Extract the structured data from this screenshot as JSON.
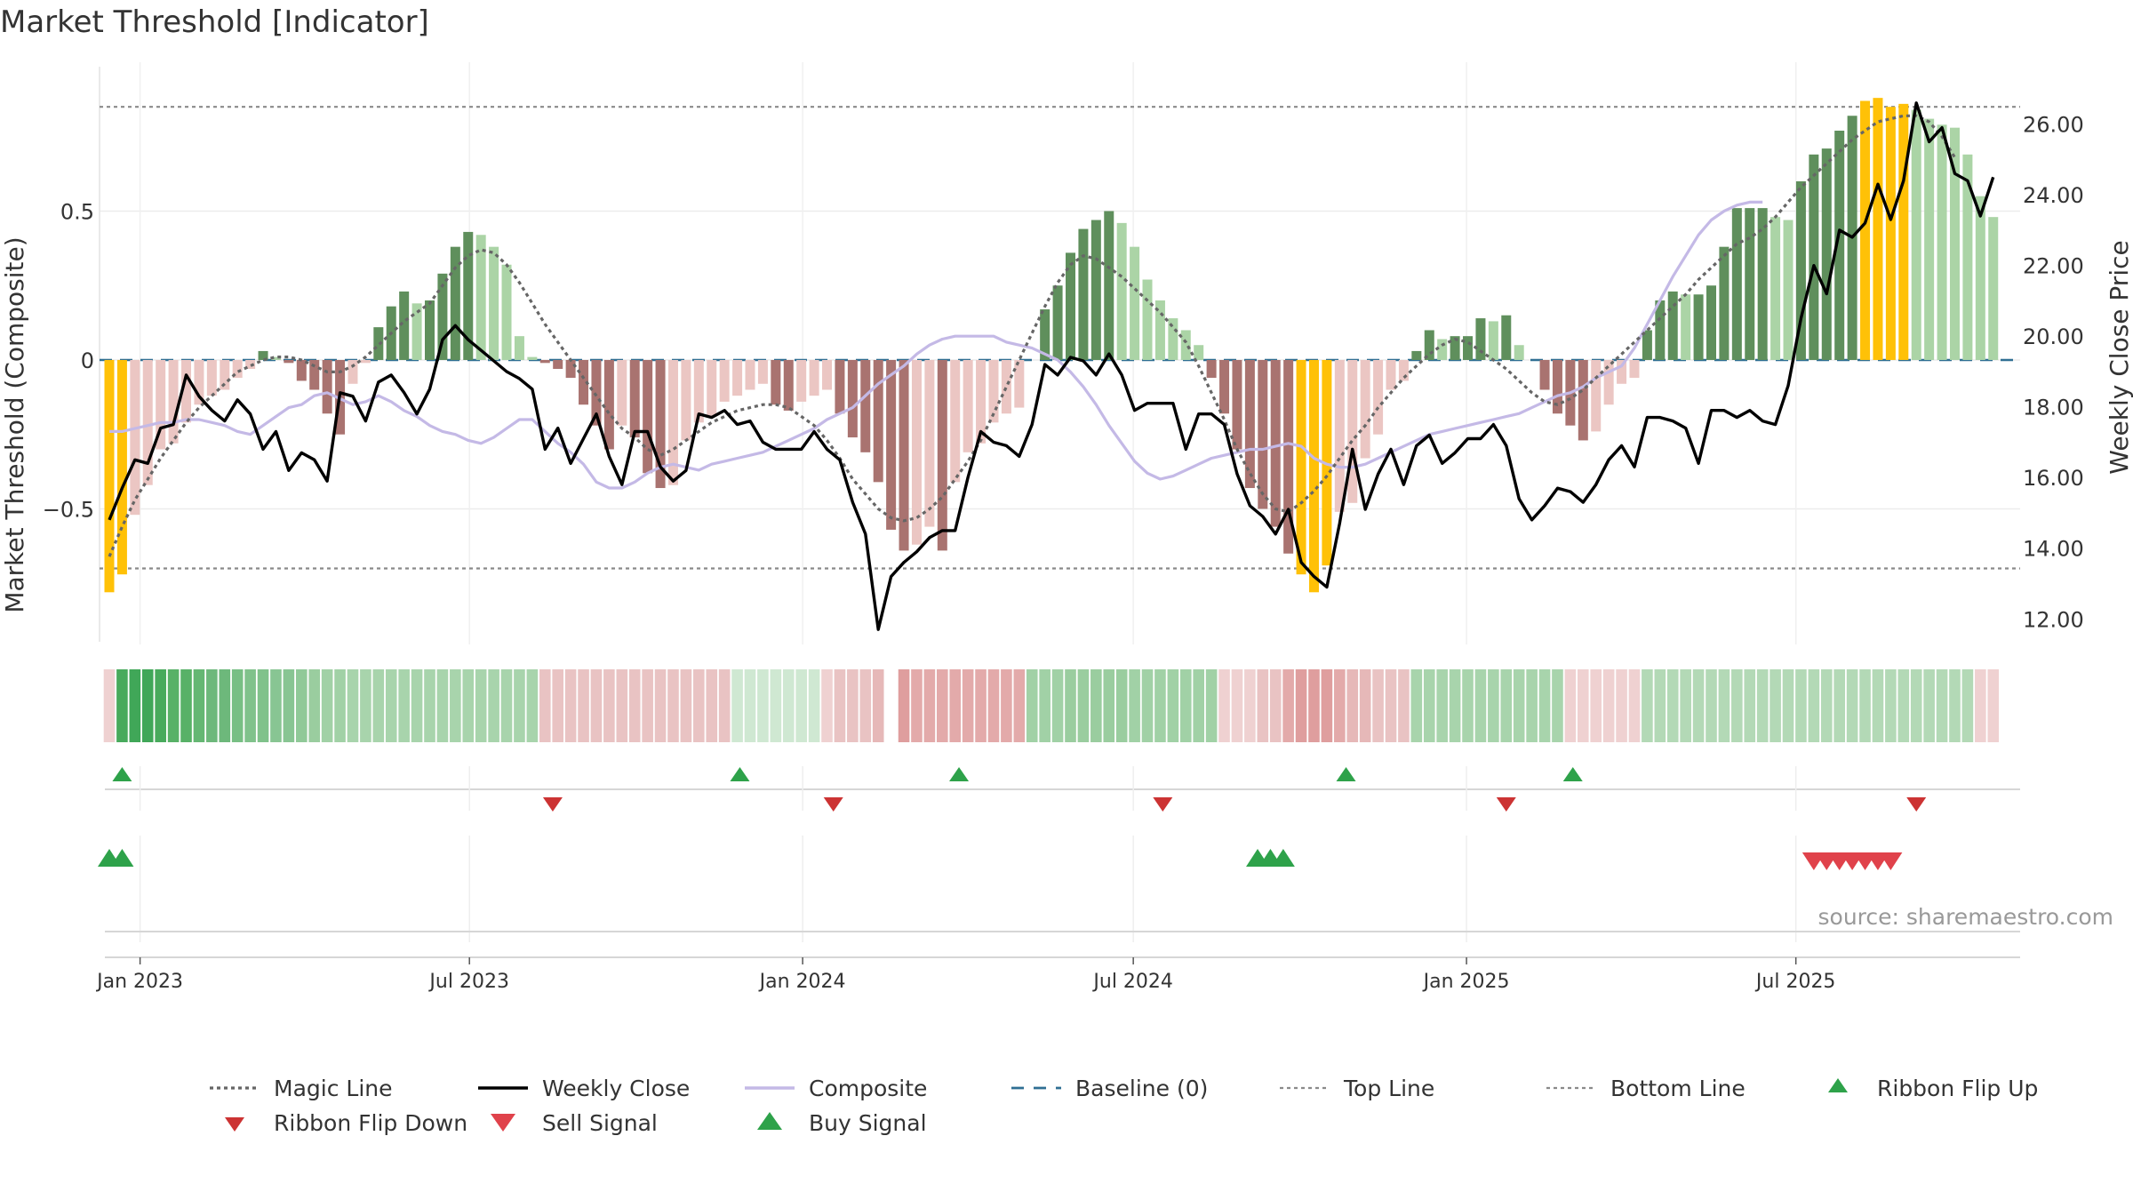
{
  "chart_data": {
    "type": "bar",
    "title": "Market Threshold [Indicator]",
    "source": "source: sharemaestro.com",
    "ylabel_left": "Market Threshold (Composite)",
    "ylabel_right": "Weekly Close Price",
    "ylim_left": [
      -1.0,
      0.97
    ],
    "ylim_right": [
      10.9,
      27.5
    ],
    "left_ticks": [
      {
        "v": 0.5,
        "label": "0.5"
      },
      {
        "v": 0,
        "label": "0"
      },
      {
        "v": -0.5,
        "label": "−0.5"
      }
    ],
    "right_ticks": [
      {
        "v": 26,
        "label": "26.00"
      },
      {
        "v": 24,
        "label": "24.00"
      },
      {
        "v": 22,
        "label": "22.00"
      },
      {
        "v": 20,
        "label": "20.00"
      },
      {
        "v": 18,
        "label": "18.00"
      },
      {
        "v": 16,
        "label": "16.00"
      },
      {
        "v": 14,
        "label": "14.00"
      },
      {
        "v": 12,
        "label": "12.00"
      }
    ],
    "x_ticks": [
      {
        "i": 2.4,
        "label": "Jan 2023"
      },
      {
        "i": 28.1,
        "label": "Jul 2023"
      },
      {
        "i": 54.1,
        "label": "Jan 2024"
      },
      {
        "i": 79.9,
        "label": "Jul 2024"
      },
      {
        "i": 105.9,
        "label": "Jan 2025"
      },
      {
        "i": 131.6,
        "label": "Jul 2025"
      }
    ],
    "grid": true,
    "top_line": 0.85,
    "bottom_line": -0.7,
    "baseline": 0,
    "composite_bars": [
      -0.78,
      -0.72,
      -0.52,
      -0.42,
      -0.3,
      -0.28,
      -0.21,
      -0.15,
      -0.12,
      -0.1,
      -0.06,
      -0.03,
      0.03,
      0.01,
      -0.01,
      -0.07,
      -0.1,
      -0.18,
      -0.25,
      -0.08,
      -0.01,
      0.11,
      0.18,
      0.23,
      0.19,
      0.2,
      0.29,
      0.38,
      0.43,
      0.42,
      0.38,
      0.32,
      0.08,
      0.01,
      -0.01,
      -0.03,
      -0.06,
      -0.15,
      -0.22,
      -0.3,
      -0.22,
      -0.26,
      -0.38,
      -0.43,
      -0.42,
      -0.27,
      -0.21,
      -0.19,
      -0.14,
      -0.12,
      -0.1,
      -0.08,
      -0.15,
      -0.17,
      -0.14,
      -0.12,
      -0.1,
      -0.18,
      -0.26,
      -0.31,
      -0.41,
      -0.57,
      -0.64,
      -0.62,
      -0.56,
      -0.64,
      -0.41,
      -0.31,
      -0.28,
      -0.21,
      -0.18,
      -0.16,
      0.0,
      0.17,
      0.25,
      0.36,
      0.44,
      0.47,
      0.5,
      0.46,
      0.38,
      0.27,
      0.2,
      0.14,
      0.1,
      0.05,
      -0.06,
      -0.18,
      -0.3,
      -0.43,
      -0.5,
      -0.56,
      -0.65,
      -0.72,
      -0.78,
      -0.69,
      -0.51,
      -0.48,
      -0.33,
      -0.25,
      -0.1,
      -0.07,
      0.03,
      0.1,
      0.07,
      0.08,
      0.08,
      0.14,
      0.13,
      0.15,
      0.05,
      0.0,
      -0.1,
      -0.18,
      -0.22,
      -0.27,
      -0.24,
      -0.15,
      -0.08,
      -0.06,
      0.1,
      0.2,
      0.23,
      0.22,
      0.22,
      0.25,
      0.38,
      0.51,
      0.51,
      0.51,
      0.48,
      0.47,
      0.6,
      0.69,
      0.71,
      0.77,
      0.82,
      0.87,
      0.88,
      0.85,
      0.86,
      0.84,
      0.81,
      0.79,
      0.78,
      0.69,
      0.55,
      0.48
    ],
    "weekly_close": [
      14.8,
      15.7,
      16.5,
      16.4,
      17.4,
      17.5,
      18.9,
      18.3,
      17.9,
      17.6,
      18.2,
      17.8,
      16.8,
      17.3,
      16.2,
      16.7,
      16.5,
      15.9,
      18.4,
      18.3,
      17.6,
      18.7,
      18.9,
      18.4,
      17.8,
      18.5,
      19.9,
      20.3,
      19.9,
      19.6,
      19.3,
      19.0,
      18.8,
      18.5,
      16.8,
      17.4,
      16.4,
      17.1,
      17.8,
      16.6,
      15.8,
      17.3,
      17.3,
      16.3,
      15.9,
      16.2,
      17.8,
      17.7,
      17.9,
      17.5,
      17.6,
      17.0,
      16.8,
      16.8,
      16.8,
      17.3,
      16.8,
      16.5,
      15.3,
      14.4,
      11.7,
      13.2,
      13.6,
      13.9,
      14.3,
      14.5,
      14.5,
      16.0,
      17.3,
      17.0,
      16.9,
      16.6,
      17.5,
      19.2,
      18.9,
      19.4,
      19.3,
      18.9,
      19.5,
      18.9,
      17.9,
      18.1,
      18.1,
      18.1,
      16.8,
      17.8,
      17.8,
      17.5,
      16.1,
      15.2,
      14.9,
      14.4,
      15.1,
      13.6,
      13.2,
      12.9,
      14.7,
      16.8,
      15.1,
      16.1,
      16.8,
      15.8,
      16.9,
      17.2,
      16.4,
      16.7,
      17.1,
      17.1,
      17.5,
      16.9,
      15.4,
      14.8,
      15.2,
      15.7,
      15.6,
      15.3,
      15.8,
      16.5,
      16.9,
      16.3,
      17.7,
      17.7,
      17.6,
      17.4,
      16.4,
      17.9,
      17.9,
      17.7,
      17.9,
      17.6,
      17.5,
      18.6,
      20.5,
      22.0,
      21.2,
      23.0,
      22.8,
      23.2,
      24.3,
      23.3,
      24.4,
      26.6,
      25.5,
      25.9,
      24.6,
      24.4,
      23.4,
      24.5
    ],
    "magic_line": [
      -0.66,
      -0.56,
      -0.47,
      -0.4,
      -0.33,
      -0.27,
      -0.21,
      -0.16,
      -0.12,
      -0.08,
      -0.04,
      -0.02,
      0.0,
      0.01,
      0.01,
      0.0,
      -0.02,
      -0.04,
      -0.04,
      -0.02,
      0.01,
      0.05,
      0.09,
      0.13,
      0.16,
      0.19,
      0.25,
      0.31,
      0.35,
      0.37,
      0.36,
      0.32,
      0.26,
      0.19,
      0.12,
      0.06,
      0.0,
      -0.06,
      -0.12,
      -0.18,
      -0.23,
      -0.26,
      -0.3,
      -0.32,
      -0.3,
      -0.27,
      -0.24,
      -0.21,
      -0.19,
      -0.17,
      -0.16,
      -0.15,
      -0.15,
      -0.16,
      -0.19,
      -0.22,
      -0.27,
      -0.33,
      -0.4,
      -0.45,
      -0.5,
      -0.53,
      -0.54,
      -0.53,
      -0.5,
      -0.46,
      -0.4,
      -0.34,
      -0.27,
      -0.18,
      -0.09,
      0.0,
      0.09,
      0.18,
      0.26,
      0.32,
      0.35,
      0.34,
      0.31,
      0.28,
      0.24,
      0.2,
      0.16,
      0.11,
      0.06,
      -0.02,
      -0.11,
      -0.2,
      -0.3,
      -0.38,
      -0.45,
      -0.5,
      -0.51,
      -0.48,
      -0.44,
      -0.39,
      -0.33,
      -0.27,
      -0.22,
      -0.16,
      -0.11,
      -0.06,
      -0.02,
      0.02,
      0.05,
      0.07,
      0.06,
      0.03,
      0.0,
      -0.03,
      -0.07,
      -0.11,
      -0.14,
      -0.15,
      -0.13,
      -0.1,
      -0.06,
      -0.02,
      0.02,
      0.06,
      0.1,
      0.14,
      0.18,
      0.22,
      0.27,
      0.31,
      0.35,
      0.39,
      0.41,
      0.44,
      0.48,
      0.53,
      0.58,
      0.62,
      0.66,
      0.7,
      0.74,
      0.77,
      0.8,
      0.81,
      0.82,
      0.82,
      0.8,
      0.75,
      0.68
    ],
    "composite_line": [
      -0.24,
      -0.24,
      -0.23,
      -0.22,
      -0.21,
      -0.21,
      -0.2,
      -0.2,
      -0.21,
      -0.22,
      -0.24,
      -0.25,
      -0.22,
      -0.19,
      -0.16,
      -0.15,
      -0.12,
      -0.11,
      -0.13,
      -0.15,
      -0.14,
      -0.12,
      -0.14,
      -0.17,
      -0.19,
      -0.22,
      -0.24,
      -0.25,
      -0.27,
      -0.28,
      -0.26,
      -0.23,
      -0.2,
      -0.2,
      -0.24,
      -0.28,
      -0.31,
      -0.35,
      -0.41,
      -0.43,
      -0.43,
      -0.41,
      -0.38,
      -0.36,
      -0.35,
      -0.36,
      -0.37,
      -0.35,
      -0.34,
      -0.33,
      -0.32,
      -0.31,
      -0.29,
      -0.27,
      -0.25,
      -0.23,
      -0.2,
      -0.18,
      -0.16,
      -0.12,
      -0.08,
      -0.05,
      -0.02,
      0.02,
      0.05,
      0.07,
      0.08,
      0.08,
      0.08,
      0.08,
      0.06,
      0.05,
      0.04,
      0.02,
      0.0,
      -0.04,
      -0.09,
      -0.15,
      -0.22,
      -0.28,
      -0.34,
      -0.38,
      -0.4,
      -0.39,
      -0.37,
      -0.35,
      -0.33,
      -0.32,
      -0.31,
      -0.3,
      -0.3,
      -0.29,
      -0.28,
      -0.29,
      -0.33,
      -0.35,
      -0.36,
      -0.36,
      -0.35,
      -0.33,
      -0.31,
      -0.29,
      -0.27,
      -0.25,
      -0.24,
      -0.23,
      -0.22,
      -0.21,
      -0.2,
      -0.19,
      -0.18,
      -0.16,
      -0.14,
      -0.12,
      -0.11,
      -0.09,
      -0.06,
      -0.04,
      -0.02,
      0.04,
      0.12,
      0.2,
      0.28,
      0.35,
      0.42,
      0.47,
      0.5,
      0.52,
      0.53,
      0.53
    ],
    "ribbon_colors": [
      "#efd1d1",
      "#48aa5c",
      "#40a758",
      "#40a758",
      "#48aa5c",
      "#58b167",
      "#58b167",
      "#65b773",
      "#6db87b",
      "#6db87b",
      "#78bf84",
      "#80c28b",
      "#80c28b",
      "#88c593",
      "#88c593",
      "#90c998",
      "#9acd9f",
      "#a1d1a6",
      "#a1d1a6",
      "#a8d4ac",
      "#a8d4ac",
      "#a8d4ac",
      "#a8d4ac",
      "#a8d4ac",
      "#a8d4ac",
      "#a8d4ac",
      "#a8d4ac",
      "#a8d4ac",
      "#a8d4ac",
      "#a8d4ac",
      "#a8d4ac",
      "#a8d4ac",
      "#a8d4ac",
      "#a8d4ac",
      "#e9c3c3",
      "#e9c3c3",
      "#e9c3c3",
      "#e9c3c3",
      "#e9c3c3",
      "#e9c3c3",
      "#e9c3c3",
      "#e9c3c3",
      "#e9c3c3",
      "#e9c3c3",
      "#e9c3c3",
      "#e9c3c3",
      "#e9c3c3",
      "#e9c3c3",
      "#e9c3c3",
      "#cfe8d2",
      "#cfe8d2",
      "#cfe8d2",
      "#cfe8d2",
      "#cfe8d2",
      "#cfe8d2",
      "#cfe8d2",
      "#efd1d1",
      "#e9c3c3",
      "#e9c3c3",
      "#e9c3c3",
      "#e6b8b8",
      "#ffffff",
      "#df9e9e",
      "#e3aaaa",
      "#e3aaaa",
      "#e3aaaa",
      "#e3aaaa",
      "#e3aaaa",
      "#e3aaaa",
      "#e3aaaa",
      "#e3aaaa",
      "#e3aaaa",
      "#a1d1a6",
      "#a1d1a6",
      "#a1d1a6",
      "#9acd9f",
      "#9acd9f",
      "#9acd9f",
      "#9acd9f",
      "#9acd9f",
      "#a1d1a6",
      "#a1d1a6",
      "#a1d1a6",
      "#a1d1a6",
      "#a1d1a6",
      "#a1d1a6",
      "#a1d1a6",
      "#efd1d1",
      "#efd1d1",
      "#efd1d1",
      "#e9c3c3",
      "#e9c3c3",
      "#e3aaaa",
      "#df9e9e",
      "#df9e9e",
      "#df9e9e",
      "#e3aaaa",
      "#e6b8b8",
      "#e6b8b8",
      "#e9c3c3",
      "#e9c3c3",
      "#e9c3c3",
      "#a8d4ac",
      "#a8d4ac",
      "#a8d4ac",
      "#a8d4ac",
      "#a8d4ac",
      "#a8d4ac",
      "#a8d4ac",
      "#a8d4ac",
      "#a8d4ac",
      "#a8d4ac",
      "#a8d4ac",
      "#a8d4ac",
      "#efd1d1",
      "#efd1d1",
      "#efd1d1",
      "#efd1d1",
      "#efd1d1",
      "#efd1d1",
      "#b3d9b6",
      "#b3d9b6",
      "#b3d9b6",
      "#b3d9b6",
      "#b3d9b6",
      "#b3d9b6",
      "#b3d9b6",
      "#b3d9b6",
      "#b3d9b6",
      "#b3d9b6",
      "#b3d9b6",
      "#b3d9b6",
      "#b3d9b6",
      "#b3d9b6",
      "#b3d9b6",
      "#b3d9b6",
      "#b3d9b6",
      "#b3d9b6",
      "#b3d9b6",
      "#b3d9b6",
      "#b3d9b6",
      "#b3d9b6",
      "#b3d9b6",
      "#b3d9b6",
      "#b3d9b6",
      "#b3d9b6",
      "#efd1d1",
      "#efd1d1"
    ],
    "ribbon_flip_up": [
      1.0,
      49.2,
      66.3,
      96.5,
      114.2
    ],
    "ribbon_flip_down": [
      34.6,
      56.5,
      82.2,
      109.0,
      141.0
    ],
    "buy_signals": [
      0.0,
      1.0,
      89.6,
      90.6,
      91.6
    ],
    "sell_signals": [
      133.0,
      134.0,
      135.0,
      136.0,
      137.0,
      138.0,
      139.0
    ],
    "colors": {
      "bull_dark": "#5f8f5c",
      "bull_light": "#abd4a6",
      "bear_dark": "#a97370",
      "bear_light": "#ebc6c3",
      "extreme": "#ffc107",
      "close_line": "#000000",
      "composite_line": "#c4b9e6",
      "magic_line": "#666666",
      "baseline": "#2f6f93",
      "buy": "#2ea24a",
      "sell": "#d33a3a",
      "flip_up": "#2ea24a",
      "flip_down": "#cc3333"
    },
    "legend": [
      {
        "label": "Magic Line",
        "kind": "dotted",
        "color": "#666666"
      },
      {
        "label": "Weekly Close",
        "kind": "solid",
        "color": "#000000"
      },
      {
        "label": "Composite",
        "kind": "solid",
        "color": "#c4b9e6"
      },
      {
        "label": "Baseline (0)",
        "kind": "dashed",
        "color": "#2f6f93"
      },
      {
        "label": "Top Line",
        "kind": "dotted-light",
        "color": "#8a8a8a"
      },
      {
        "label": "Bottom Line",
        "kind": "dotted-light",
        "color": "#8a8a8a"
      },
      {
        "label": "Ribbon Flip Up",
        "kind": "tri-up",
        "color": "#2ea24a"
      },
      {
        "label": "Ribbon Flip Down",
        "kind": "tri-down",
        "color": "#cc3333"
      },
      {
        "label": "Sell Signal",
        "kind": "tri-down-big",
        "color": "#e0424b"
      },
      {
        "label": "Buy Signal",
        "kind": "tri-up-big",
        "color": "#2ea24a"
      }
    ]
  }
}
